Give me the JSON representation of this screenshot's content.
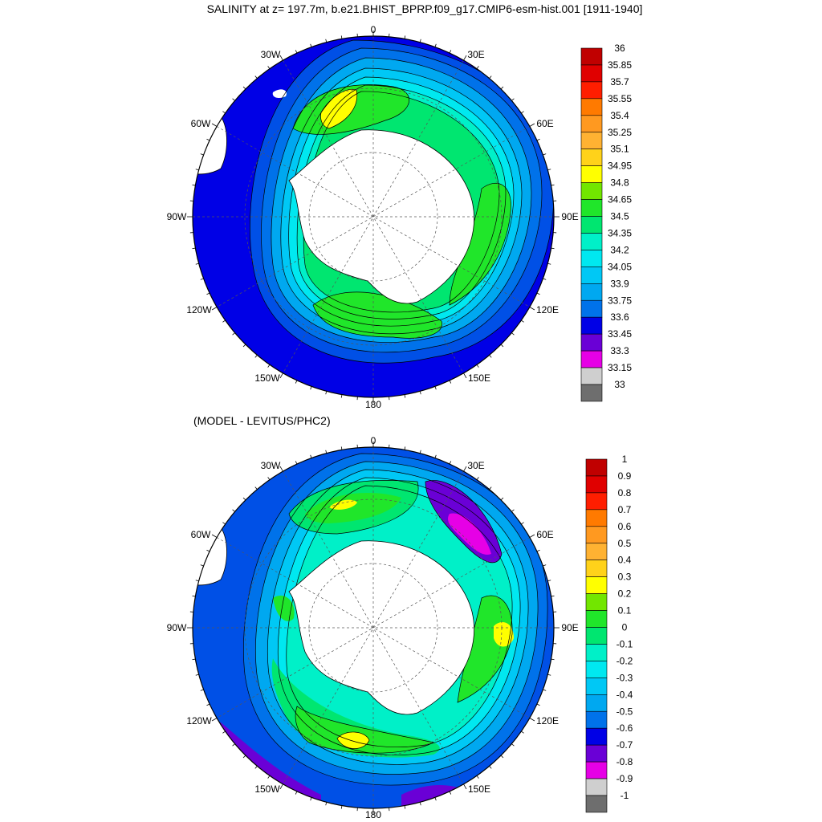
{
  "title": "SALINITY at z= 197.7m, b.e21.BHIST_BPRP.f09_g17.CMIP6-esm-hist.001 [1911-1940]",
  "subtitle": "(MODEL - LEVITUS/PHC2)",
  "longitude_labels": [
    "0",
    "30E",
    "60E",
    "90E",
    "120E",
    "150E",
    "180",
    "150W",
    "120W",
    "90W",
    "60W",
    "30W"
  ],
  "colors": {
    "levels_21": [
      "#6e6e6e",
      "#cfcfcf",
      "#e600e6",
      "#9400d3",
      "#6a00d6",
      "#0000e6",
      "#0050e6",
      "#0072ea",
      "#00a8f0",
      "#00c8f5",
      "#00e8f0",
      "#00f0c8",
      "#00e670",
      "#20e62a",
      "#72e600",
      "#ffff00",
      "#ffd21a",
      "#ffb232",
      "#ff9920",
      "#ff7a00",
      "#ff1e00",
      "#e00000",
      "#c00000"
    ]
  },
  "colorbar_top": {
    "labels": [
      "36",
      "35.85",
      "35.7",
      "35.55",
      "35.4",
      "35.25",
      "35.1",
      "34.95",
      "34.8",
      "34.65",
      "34.5",
      "34.35",
      "34.2",
      "34.05",
      "33.9",
      "33.75",
      "33.6",
      "33.45",
      "33.3",
      "33.15",
      "33"
    ],
    "colors": [
      "#c00000",
      "#e00000",
      "#ff1e00",
      "#ff7a00",
      "#ff9920",
      "#ffb232",
      "#ffd21a",
      "#ffff00",
      "#72e600",
      "#20e62a",
      "#00e670",
      "#00f0c8",
      "#00e8f0",
      "#00c8f5",
      "#00a8f0",
      "#0072ea",
      "#0000e6",
      "#6a00d6",
      "#e600e6",
      "#cfcfcf",
      "#6e6e6e"
    ]
  },
  "colorbar_bottom": {
    "labels": [
      "1",
      "0.9",
      "0.8",
      "0.7",
      "0.6",
      "0.5",
      "0.4",
      "0.3",
      "0.2",
      "0.1",
      "0",
      "-0.1",
      "-0.2",
      "-0.3",
      "-0.4",
      "-0.5",
      "-0.6",
      "-0.7",
      "-0.8",
      "-0.9",
      "-1"
    ],
    "colors": [
      "#c00000",
      "#e00000",
      "#ff1e00",
      "#ff7a00",
      "#ff9920",
      "#ffb232",
      "#ffd21a",
      "#ffff00",
      "#72e600",
      "#20e62a",
      "#00e670",
      "#00f0c8",
      "#00e8f0",
      "#00c8f5",
      "#00a8f0",
      "#0072ea",
      "#0000e6",
      "#6a00d6",
      "#e600e6",
      "#cfcfcf",
      "#6e6e6e"
    ]
  }
}
